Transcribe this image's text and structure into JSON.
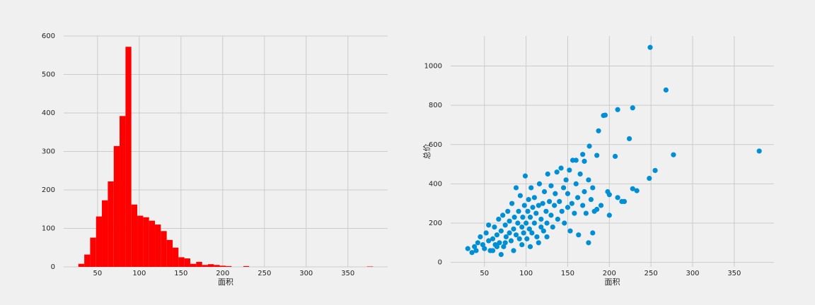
{
  "chart_data": [
    {
      "type": "histogram",
      "x_label": "面积",
      "color": "#ff0000",
      "bins": [
        27,
        34.1,
        41.1,
        48.2,
        55.2,
        62.3,
        69.4,
        76.4,
        83.5,
        90.5,
        97.6,
        104.7,
        111.7,
        118.8,
        125.8,
        132.9,
        140,
        147,
        154.1,
        161.1,
        168.2,
        175.3,
        182.3,
        189.4,
        196.4,
        203.5,
        210.6,
        217.6,
        224.7,
        231.7,
        238.8,
        245.9,
        252.9,
        260,
        267,
        274.1,
        281.2,
        288.2,
        295.3,
        302.3,
        309.4,
        316.5,
        323.5,
        330.6,
        337.6,
        344.7,
        351.8,
        358.8,
        365.9,
        372.9,
        380
      ],
      "counts": [
        8,
        32,
        76,
        131,
        173,
        222,
        314,
        392,
        572,
        162,
        133,
        129,
        120,
        110,
        93,
        70,
        50,
        25,
        22,
        8,
        13,
        5,
        7,
        5,
        3,
        2,
        0,
        0,
        2,
        0,
        0,
        0,
        0,
        0,
        0,
        0,
        0,
        0,
        0,
        0,
        0,
        0,
        0,
        0,
        0,
        0,
        0,
        0,
        0,
        1
      ],
      "xlim": [
        9.4,
        397.7
      ],
      "xticks": [
        50,
        100,
        150,
        200,
        250,
        300,
        350
      ],
      "ylim": [
        0,
        600
      ],
      "yticks": [
        0,
        100,
        200,
        300,
        400,
        500,
        600
      ],
      "grid": true
    },
    {
      "type": "scatter",
      "x_label": "面积",
      "y_label": "总价",
      "color": "#008fd5",
      "x": [
        30,
        35,
        38,
        40,
        42,
        45,
        48,
        50,
        52,
        55,
        57,
        60,
        62,
        63,
        65,
        67,
        68,
        70,
        72,
        73,
        75,
        76,
        78,
        80,
        80,
        82,
        83,
        85,
        86,
        88,
        88,
        90,
        91,
        92,
        93,
        95,
        96,
        97,
        98,
        99,
        100,
        101,
        102,
        103,
        104,
        105,
        106,
        107,
        108,
        110,
        110,
        112,
        113,
        115,
        116,
        118,
        118,
        120,
        121,
        122,
        124,
        125,
        126,
        128,
        130,
        130,
        132,
        134,
        135,
        137,
        138,
        140,
        142,
        143,
        145,
        146,
        148,
        150,
        150,
        152,
        153,
        155,
        156,
        158,
        160,
        162,
        163,
        165,
        168,
        170,
        172,
        175,
        178,
        180,
        182,
        60,
        70,
        85,
        95,
        105,
        115,
        125,
        55,
        65,
        75,
        249,
        268,
        228,
        210,
        195,
        193,
        187,
        224,
        176,
        380,
        277,
        207,
        168,
        185,
        160,
        170,
        255,
        248,
        233,
        228,
        198,
        200,
        210,
        215,
        218,
        200,
        175,
        180,
        190,
        185
      ],
      "y": [
        70,
        50,
        80,
        60,
        100,
        130,
        90,
        70,
        150,
        110,
        60,
        120,
        180,
        90,
        140,
        220,
        100,
        160,
        240,
        80,
        190,
        130,
        260,
        150,
        210,
        110,
        300,
        170,
        230,
        140,
        380,
        200,
        260,
        120,
        340,
        180,
        230,
        150,
        290,
        440,
        200,
        120,
        260,
        320,
        170,
        230,
        380,
        150,
        280,
        200,
        330,
        250,
        130,
        290,
        400,
        220,
        180,
        300,
        160,
        360,
        260,
        200,
        450,
        310,
        240,
        390,
        180,
        290,
        350,
        460,
        220,
        310,
        480,
        260,
        380,
        200,
        420,
        280,
        350,
        470,
        160,
        300,
        520,
        250,
        400,
        330,
        140,
        450,
        290,
        360,
        250,
        420,
        320,
        380,
        260,
        60,
        40,
        60,
        90,
        80,
        100,
        130,
        190,
        80,
        100,
        1095,
        878,
        787,
        778,
        750,
        748,
        670,
        630,
        592,
        567,
        548,
        540,
        550,
        545,
        520,
        515,
        468,
        428,
        365,
        375,
        360,
        345,
        330,
        310,
        310,
        240,
        100,
        150,
        290,
        270
      ],
      "xlim": [
        9.4,
        397.7
      ],
      "xticks": [
        50,
        100,
        150,
        200,
        250,
        300,
        350
      ],
      "ylim": [
        -23,
        1153
      ],
      "yticks": [
        0,
        200,
        400,
        600,
        800,
        1000
      ],
      "grid": true
    }
  ]
}
